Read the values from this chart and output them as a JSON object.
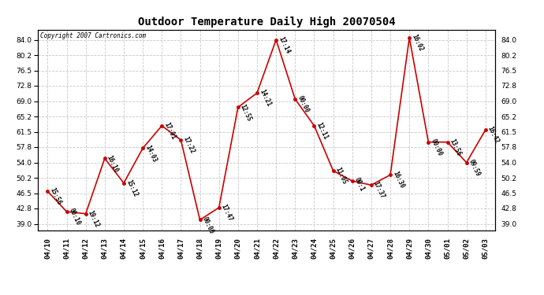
{
  "title": "Outdoor Temperature Daily High 20070504",
  "copyright": "Copyright 2007 Cartronics.com",
  "x_labels": [
    "04/10",
    "04/11",
    "04/12",
    "04/13",
    "04/14",
    "04/15",
    "04/16",
    "04/17",
    "04/18",
    "04/19",
    "04/20",
    "04/21",
    "04/22",
    "04/23",
    "04/24",
    "04/25",
    "04/26",
    "04/27",
    "04/28",
    "04/29",
    "04/30",
    "05/01",
    "05/02",
    "05/03"
  ],
  "y_values": [
    47.0,
    42.0,
    41.5,
    55.0,
    49.0,
    57.5,
    63.0,
    59.5,
    40.0,
    43.0,
    67.5,
    71.0,
    84.0,
    69.5,
    63.0,
    52.0,
    49.5,
    48.5,
    51.0,
    84.5,
    59.0,
    59.0,
    54.0,
    62.0
  ],
  "point_labels": [
    "15:56",
    "00:10",
    "19:12",
    "16:10",
    "15:12",
    "14:03",
    "17:01",
    "17:22",
    "00:00",
    "17:47",
    "12:55",
    "14:21",
    "17:14",
    "00:00",
    "12:11",
    "11:05",
    "00:1",
    "17:37",
    "16:30",
    "16:02",
    "00:00",
    "13:56",
    "09:59",
    "16:42"
  ],
  "line_color": "#cc0000",
  "marker_color": "#cc0000",
  "bg_color": "#ffffff",
  "grid_color": "#c8c8c8",
  "yticks": [
    39.0,
    42.8,
    46.5,
    50.2,
    54.0,
    57.8,
    61.5,
    65.2,
    69.0,
    72.8,
    76.5,
    80.2,
    84.0
  ],
  "ylim": [
    37.5,
    86.5
  ],
  "title_fontsize": 10,
  "tick_fontsize": 6.5,
  "label_fontsize": 5.5
}
